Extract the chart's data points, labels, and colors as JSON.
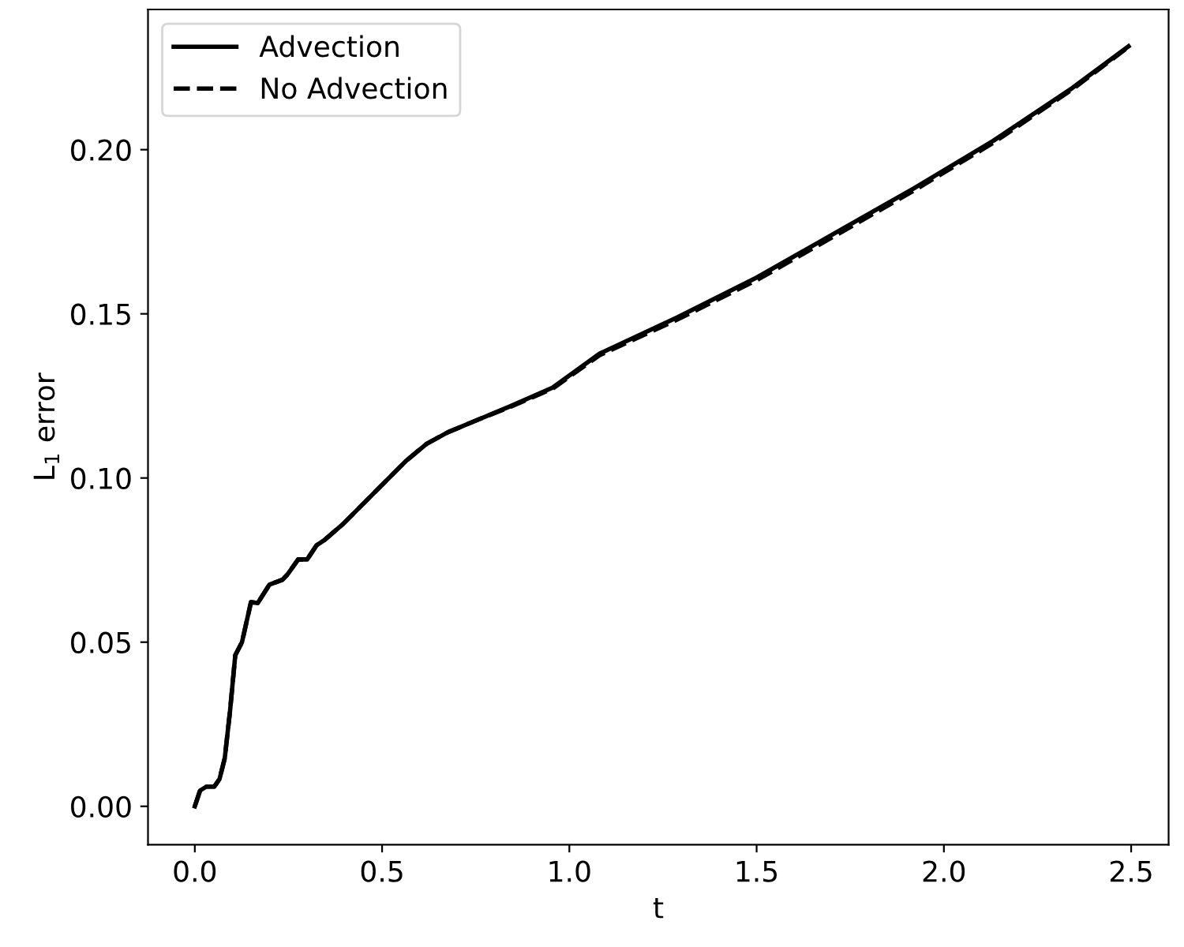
{
  "chart_data": {
    "type": "line",
    "xlabel": "t",
    "ylabel": "L$_{1}$ error",
    "xlim": [
      -0.125,
      2.6
    ],
    "ylim": [
      -0.0117,
      0.2427
    ],
    "xticks": [
      {
        "value": 0,
        "label": "0.0"
      },
      {
        "value": 0.5,
        "label": "0.5"
      },
      {
        "value": 1,
        "label": "1.0"
      },
      {
        "value": 1.5,
        "label": "1.5"
      },
      {
        "value": 2,
        "label": "2.0"
      },
      {
        "value": 2.5,
        "label": "2.5"
      }
    ],
    "yticks": [
      {
        "value": 0,
        "label": "0.00"
      },
      {
        "value": 0.05,
        "label": "0.05"
      },
      {
        "value": 0.1,
        "label": "0.10"
      },
      {
        "value": 0.15,
        "label": "0.15"
      },
      {
        "value": 0.2,
        "label": "0.20"
      }
    ],
    "x": [
      0,
      0.014,
      0.031,
      0.052,
      0.066,
      0.08,
      0.094,
      0.108,
      0.126,
      0.15,
      0.168,
      0.199,
      0.234,
      0.248,
      0.276,
      0.3,
      0.325,
      0.346,
      0.395,
      0.437,
      0.493,
      0.563,
      0.619,
      0.675,
      0.759,
      0.843,
      0.955,
      1.081,
      1.291,
      1.501,
      1.711,
      1.921,
      2.132,
      2.342,
      2.493
    ],
    "series": [
      {
        "name": "Advection",
        "color": "#000000",
        "line_style": "solid",
        "values": [
          0,
          0.0048,
          0.006,
          0.006,
          0.0083,
          0.0147,
          0.029,
          0.046,
          0.05,
          0.0622,
          0.0619,
          0.0675,
          0.069,
          0.0707,
          0.0752,
          0.0752,
          0.0795,
          0.0811,
          0.0859,
          0.0907,
          0.0971,
          0.1051,
          0.1104,
          0.1139,
          0.1179,
          0.1219,
          0.1275,
          0.1379,
          0.1491,
          0.1611,
          0.1747,
          0.1883,
          0.2027,
          0.2187,
          0.2315
        ]
      },
      {
        "name": "No Advection",
        "color": "#000000",
        "line_style": "dashed",
        "values": [
          0,
          0.0048,
          0.006,
          0.006,
          0.0083,
          0.0147,
          0.029,
          0.046,
          0.05,
          0.0622,
          0.0619,
          0.0675,
          0.069,
          0.0707,
          0.0752,
          0.0752,
          0.0795,
          0.0811,
          0.0859,
          0.0907,
          0.0971,
          0.1051,
          0.1104,
          0.1139,
          0.1179,
          0.1217,
          0.1272,
          0.1374,
          0.1484,
          0.1603,
          0.1739,
          0.1876,
          0.2021,
          0.2183,
          0.2313
        ]
      }
    ],
    "legend": "top left",
    "grid": false,
    "marker": "none"
  }
}
